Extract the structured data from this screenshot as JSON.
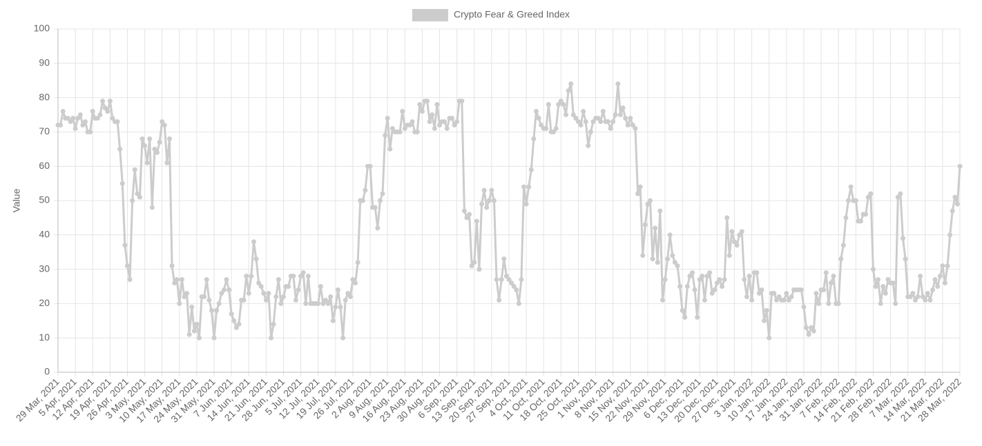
{
  "chart_data": {
    "type": "line",
    "series_label_in_legend": true,
    "y_label": "Value",
    "ylim": [
      0,
      100
    ],
    "yticks": [
      0,
      10,
      20,
      30,
      40,
      50,
      60,
      70,
      80,
      90,
      100
    ],
    "grid": true,
    "legend": "top",
    "categories": [
      "29 Mar, 2021",
      null,
      null,
      null,
      null,
      null,
      null,
      "5 Apr, 2021",
      null,
      null,
      null,
      null,
      null,
      null,
      "12 Apr, 2021",
      null,
      null,
      null,
      null,
      null,
      null,
      "19 Apr, 2021",
      null,
      null,
      null,
      null,
      null,
      null,
      "26 Apr, 2021",
      null,
      null,
      null,
      null,
      null,
      null,
      "3 May, 2021",
      null,
      null,
      null,
      null,
      null,
      null,
      "10 May, 2021",
      null,
      null,
      null,
      null,
      null,
      null,
      "17 May, 2021",
      null,
      null,
      null,
      null,
      null,
      null,
      "24 May, 2021",
      null,
      null,
      null,
      null,
      null,
      null,
      "31 May, 2021",
      null,
      null,
      null,
      null,
      null,
      null,
      "7 Jun, 2021",
      null,
      null,
      null,
      null,
      null,
      null,
      "14 Jun, 2021",
      null,
      null,
      null,
      null,
      null,
      null,
      "21 Jun, 2021",
      null,
      null,
      null,
      null,
      null,
      null,
      "28 Jun, 2021",
      null,
      null,
      null,
      null,
      null,
      null,
      "5 Jul, 2021",
      null,
      null,
      null,
      null,
      null,
      null,
      "12 Jul, 2021",
      null,
      null,
      null,
      null,
      null,
      null,
      "19 Jul, 2021",
      null,
      null,
      null,
      null,
      null,
      null,
      "26 Jul, 2021",
      null,
      null,
      null,
      null,
      null,
      null,
      "2 Aug, 2021",
      null,
      null,
      null,
      null,
      null,
      null,
      "9 Aug, 2021",
      null,
      null,
      null,
      null,
      null,
      null,
      "16 Aug, 2021",
      null,
      null,
      null,
      null,
      null,
      null,
      "23 Aug, 2021",
      null,
      null,
      null,
      null,
      null,
      null,
      "30 Aug, 2021",
      null,
      null,
      null,
      null,
      null,
      null,
      "6 Sep, 2021",
      null,
      null,
      null,
      null,
      null,
      null,
      "13 Sep, 2021",
      null,
      null,
      null,
      null,
      null,
      null,
      "20 Sep, 2021",
      null,
      null,
      null,
      null,
      null,
      null,
      "27 Sep, 2021",
      null,
      null,
      null,
      null,
      null,
      null,
      "4 Oct, 2021",
      null,
      null,
      null,
      null,
      null,
      null,
      "11 Oct, 2021",
      null,
      null,
      null,
      null,
      null,
      null,
      "18 Oct, 2021",
      null,
      null,
      null,
      null,
      null,
      null,
      "25 Oct, 2021",
      null,
      null,
      null,
      null,
      null,
      null,
      "1 Nov, 2021",
      null,
      null,
      null,
      null,
      null,
      null,
      "8 Nov, 2021",
      null,
      null,
      null,
      null,
      null,
      null,
      "15 Nov, 2021",
      null,
      null,
      null,
      null,
      null,
      null,
      "22 Nov, 2021",
      null,
      null,
      null,
      null,
      null,
      null,
      "29 Nov, 2021",
      null,
      null,
      null,
      null,
      null,
      null,
      "6 Dec, 2021",
      null,
      null,
      null,
      null,
      null,
      null,
      "13 Dec, 2021",
      null,
      null,
      null,
      null,
      null,
      null,
      "20 Dec, 2021",
      null,
      null,
      null,
      null,
      null,
      null,
      "27 Dec, 2021",
      null,
      null,
      null,
      null,
      null,
      null,
      "3 Jan, 2022",
      null,
      null,
      null,
      null,
      null,
      null,
      "10 Jan, 2022",
      null,
      null,
      null,
      null,
      null,
      null,
      "17 Jan, 2022",
      null,
      null,
      null,
      null,
      null,
      null,
      "24 Jan, 2022",
      null,
      null,
      null,
      null,
      null,
      null,
      "31 Jan, 2022",
      null,
      null,
      null,
      null,
      null,
      null,
      "7 Feb, 2022",
      null,
      null,
      null,
      null,
      null,
      null,
      "14 Feb, 2022",
      null,
      null,
      null,
      null,
      null,
      null,
      "21 Feb, 2022",
      null,
      null,
      null,
      null,
      null,
      null,
      "28 Feb, 2022",
      null,
      null,
      null,
      null,
      null,
      null,
      "7 Mar, 2022",
      null,
      null,
      null,
      null,
      null,
      null,
      "14 Mar, 2022",
      null,
      null,
      null,
      null,
      null,
      null,
      "21 Mar, 2022",
      null,
      null,
      null,
      null,
      null,
      null,
      "28 Mar, 2022"
    ],
    "series": [
      {
        "name": "Crypto Fear & Greed Index",
        "color": "#cccccc",
        "values": [
          72,
          72,
          76,
          74,
          74,
          73,
          74,
          71,
          74,
          75,
          72,
          73,
          70,
          70,
          76,
          74,
          74,
          75,
          79,
          77,
          76,
          79,
          74,
          73,
          73,
          65,
          55,
          37,
          31,
          27,
          50,
          59,
          52,
          51,
          68,
          66,
          61,
          68,
          48,
          65,
          64,
          67,
          73,
          72,
          61,
          68,
          31,
          26,
          27,
          20,
          27,
          22,
          23,
          11,
          19,
          12,
          14,
          10,
          22,
          22,
          27,
          21,
          18,
          10,
          18,
          20,
          23,
          24,
          27,
          24,
          17,
          15,
          13,
          14,
          21,
          21,
          28,
          23,
          28,
          38,
          33,
          26,
          25,
          23,
          21,
          23,
          10,
          14,
          22,
          27,
          20,
          22,
          25,
          25,
          28,
          28,
          21,
          24,
          28,
          29,
          20,
          28,
          20,
          20,
          20,
          20,
          25,
          20,
          21,
          20,
          22,
          15,
          19,
          24,
          19,
          10,
          21,
          23,
          22,
          27,
          26,
          32,
          50,
          50,
          53,
          60,
          60,
          48,
          48,
          42,
          50,
          52,
          69,
          74,
          65,
          71,
          70,
          70,
          70,
          76,
          71,
          72,
          72,
          73,
          70,
          70,
          78,
          76,
          79,
          79,
          73,
          75,
          71,
          78,
          72,
          73,
          73,
          71,
          74,
          74,
          72,
          73,
          79,
          79,
          47,
          45,
          46,
          31,
          32,
          44,
          30,
          49,
          53,
          48,
          50,
          53,
          50,
          27,
          21,
          27,
          33,
          28,
          27,
          26,
          25,
          24,
          20,
          27,
          54,
          49,
          54,
          59,
          68,
          76,
          74,
          72,
          71,
          71,
          78,
          70,
          70,
          71,
          78,
          79,
          78,
          75,
          82,
          84,
          75,
          74,
          73,
          72,
          76,
          73,
          66,
          70,
          73,
          74,
          74,
          73,
          76,
          73,
          73,
          71,
          73,
          75,
          84,
          75,
          77,
          74,
          72,
          74,
          72,
          71,
          52,
          54,
          34,
          43,
          49,
          50,
          33,
          42,
          32,
          47,
          21,
          27,
          33,
          40,
          34,
          32,
          31,
          25,
          18,
          16,
          25,
          28,
          29,
          24,
          16,
          27,
          28,
          21,
          28,
          29,
          23,
          24,
          26,
          27,
          25,
          27,
          45,
          34,
          41,
          38,
          37,
          40,
          41,
          27,
          22,
          28,
          21,
          29,
          29,
          23,
          24,
          15,
          18,
          10,
          23,
          23,
          21,
          22,
          21,
          21,
          23,
          21,
          22,
          24,
          24,
          24,
          24,
          19,
          13,
          11,
          13,
          12,
          23,
          20,
          24,
          24,
          29,
          20,
          26,
          28,
          20,
          20,
          33,
          37,
          45,
          50,
          54,
          50,
          50,
          44,
          44,
          46,
          46,
          51,
          52,
          30,
          25,
          27,
          20,
          25,
          23,
          27,
          26,
          26,
          20,
          51,
          52,
          39,
          33,
          22,
          22,
          23,
          21,
          22,
          28,
          22,
          21,
          23,
          21,
          24,
          27,
          25,
          28,
          31,
          26,
          31,
          40,
          47,
          51,
          49,
          60
        ]
      }
    ]
  }
}
